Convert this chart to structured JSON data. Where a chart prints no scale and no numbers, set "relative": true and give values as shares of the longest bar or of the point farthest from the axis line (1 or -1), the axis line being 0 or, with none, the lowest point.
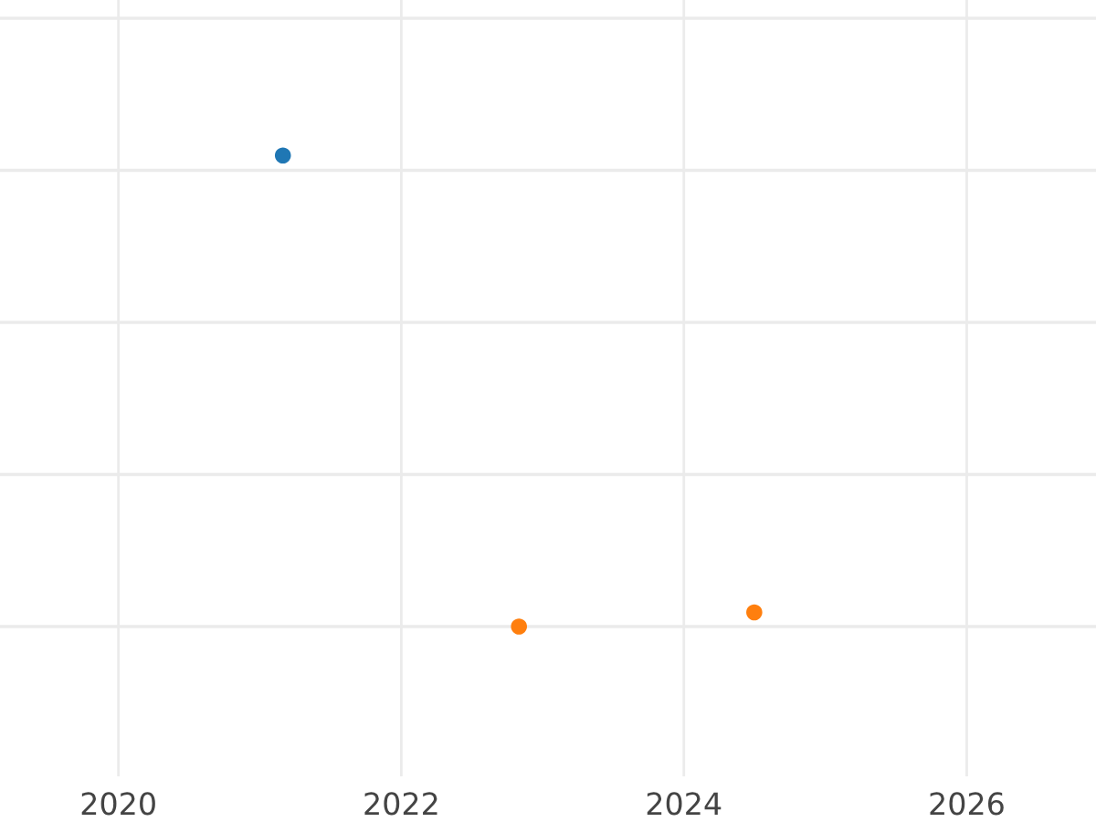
{
  "chart_data": {
    "type": "scatter",
    "relative": true,
    "marker": "circle",
    "grid": true,
    "xlim": [
      "2019-03",
      "2026-12"
    ],
    "xticks": [
      "2020",
      "2022",
      "2024",
      "2026"
    ],
    "series": [
      {
        "color": "#1f77b4",
        "x": [
          "2021-03"
        ],
        "values": [
          1
        ]
      },
      {
        "color": "#ff7f0e",
        "x": [
          "2022-11",
          "2024-07"
        ],
        "values": [
          0,
          0.03
        ]
      }
    ]
  }
}
